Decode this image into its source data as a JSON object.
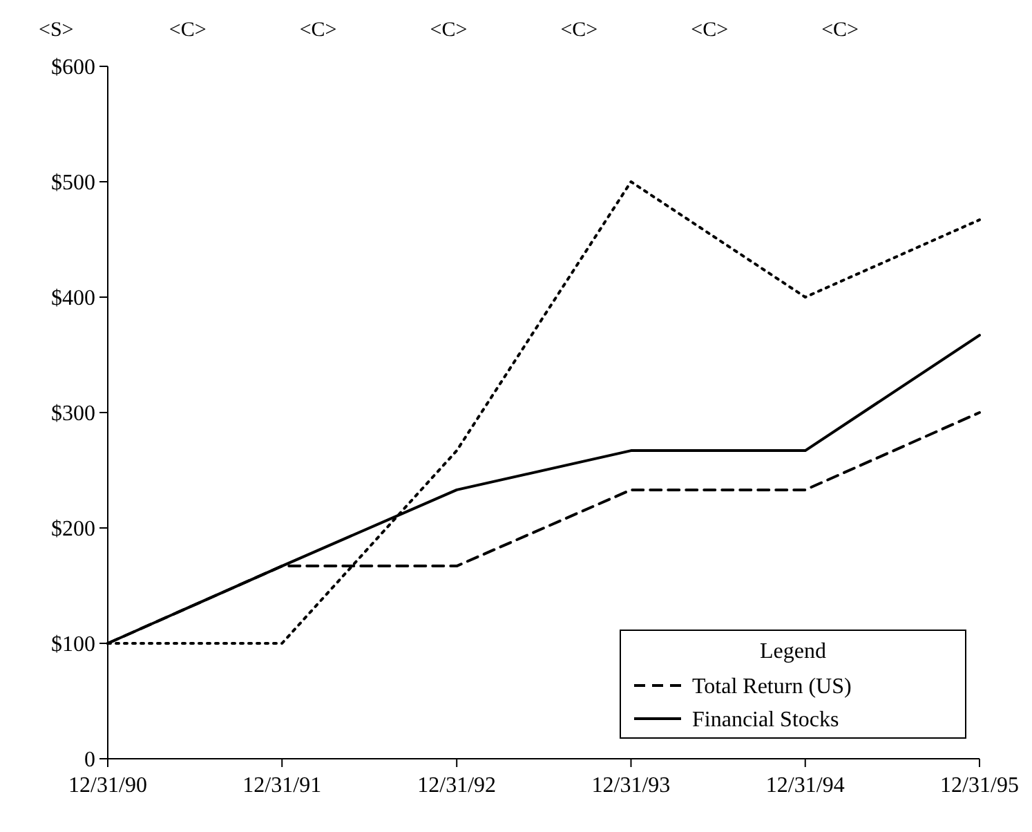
{
  "chart_data": {
    "type": "line",
    "x": [
      "1990-12-31",
      "1991-12-31",
      "1992-12-31",
      "1993-12-31",
      "1994-12-31",
      "1995-12-31"
    ],
    "series": [
      {
        "color": "#000000",
        "line_style": "dotted",
        "values": [
          100,
          100,
          267,
          500,
          400,
          467
        ]
      },
      {
        "name": "Total Return (US)",
        "color": "#000000",
        "line_style": "dashed",
        "values": [
          100,
          167,
          167,
          233,
          233,
          300
        ]
      },
      {
        "name": "Financial Stocks",
        "color": "#000000",
        "line_style": "solid",
        "values": [
          100,
          167,
          233,
          267,
          267,
          367
        ]
      }
    ],
    "xlim": [
      "1990-12-31",
      "1995-12-31"
    ],
    "xticks": [
      {
        "value": "1990-12-31",
        "label": "12/31/90"
      },
      {
        "value": "1991-12-31",
        "label": "12/31/91"
      },
      {
        "value": "1992-12-31",
        "label": "12/31/92"
      },
      {
        "value": "1993-12-31",
        "label": "12/31/93"
      },
      {
        "value": "1994-12-31",
        "label": "12/31/94"
      },
      {
        "value": "1995-12-31",
        "label": "12/31/95"
      }
    ],
    "ylim": [
      0,
      600
    ],
    "yticks": [
      {
        "value": 0,
        "label": "0"
      },
      {
        "value": 100,
        "label": "$100"
      },
      {
        "value": 200,
        "label": "$200"
      },
      {
        "value": 300,
        "label": "$300"
      },
      {
        "value": 400,
        "label": "$400"
      },
      {
        "value": 500,
        "label": "$500"
      },
      {
        "value": 600,
        "label": "$600"
      }
    ],
    "grid": false,
    "legend": "bottom right",
    "legend_title": "Legend",
    "annotations": [
      "<S>",
      "<C>",
      "<C>",
      "<C>",
      "<C>",
      "<C>",
      "<C>"
    ]
  }
}
